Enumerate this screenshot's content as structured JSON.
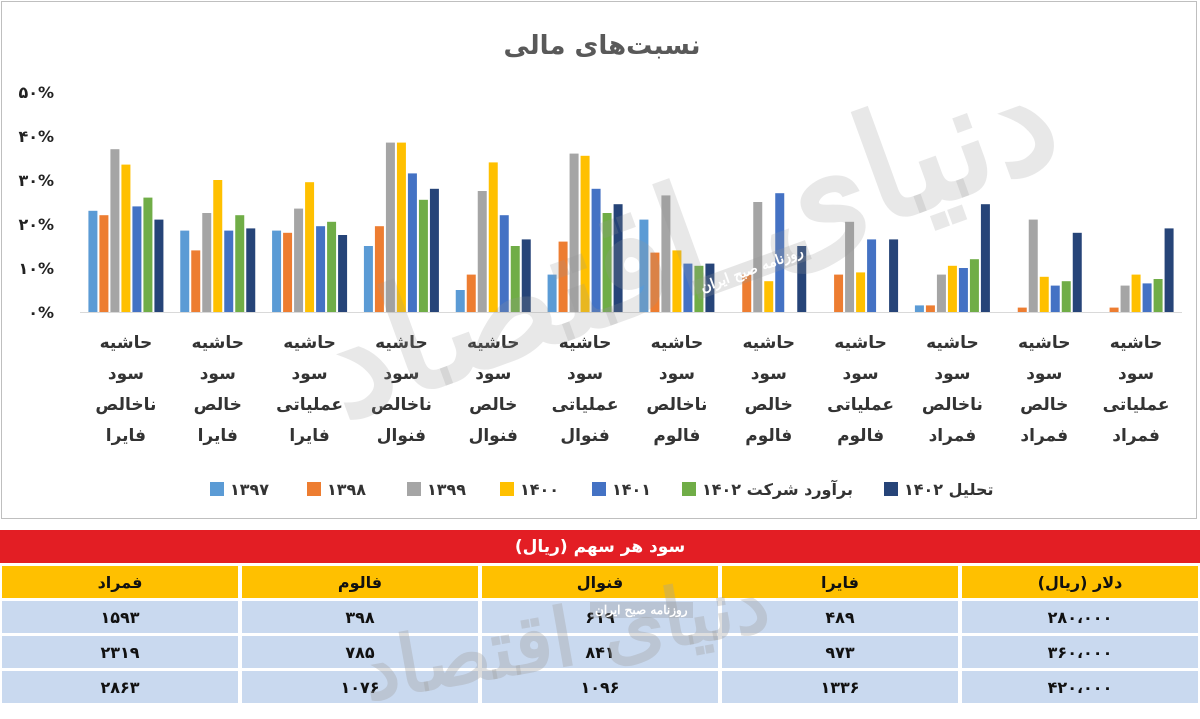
{
  "chart_data": {
    "type": "bar",
    "title": "نسبت‌های مالی",
    "categories": [
      [
        "حاشیه",
        "سود",
        "ناخالص",
        "فایرا"
      ],
      [
        "حاشیه",
        "سود",
        "خالص",
        "فایرا"
      ],
      [
        "حاشیه",
        "سود",
        "عملیاتی",
        "فایرا"
      ],
      [
        "حاشیه",
        "سود",
        "ناخالص",
        "فنوال"
      ],
      [
        "حاشیه",
        "سود",
        "خالص",
        "فنوال"
      ],
      [
        "حاشیه",
        "سود",
        "عملیاتی",
        "فنوال"
      ],
      [
        "حاشیه",
        "سود",
        "ناخالص",
        "فالوم"
      ],
      [
        "حاشیه",
        "سود",
        "خالص",
        "فالوم"
      ],
      [
        "حاشیه",
        "سود",
        "عملیاتی",
        "فالوم"
      ],
      [
        "حاشیه",
        "سود",
        "ناخالص",
        "فمراد"
      ],
      [
        "حاشیه",
        "سود",
        "خالص",
        "فمراد"
      ],
      [
        "حاشیه",
        "سود",
        "عملیاتی",
        "فمراد"
      ]
    ],
    "series": [
      {
        "name": "۱۳۹۷",
        "color": "#5b9bd5",
        "values": [
          23,
          18.5,
          18.5,
          15,
          5,
          8.5,
          21,
          0,
          0,
          1.5,
          0,
          0
        ]
      },
      {
        "name": "۱۳۹۸",
        "color": "#ed7d31",
        "values": [
          22,
          14,
          18,
          19.5,
          8.5,
          16,
          13.5,
          8.5,
          8.5,
          1.5,
          1,
          1
        ]
      },
      {
        "name": "۱۳۹۹",
        "color": "#a5a5a5",
        "values": [
          37,
          22.5,
          23.5,
          38.5,
          27.5,
          36,
          26.5,
          25,
          20.5,
          8.5,
          21,
          6
        ]
      },
      {
        "name": "۱۴۰۰",
        "color": "#ffc000",
        "values": [
          33.5,
          30,
          29.5,
          38.5,
          34,
          35.5,
          14,
          7,
          9,
          10.5,
          8,
          8.5
        ]
      },
      {
        "name": "۱۴۰۱",
        "color": "#4472c4",
        "values": [
          24,
          18.5,
          19.5,
          31.5,
          22,
          28,
          11,
          27,
          16.5,
          10,
          6,
          6.5
        ]
      },
      {
        "name": "برآورد شرکت ۱۴۰۲",
        "color": "#70ad47",
        "values": [
          26,
          22,
          20.5,
          25.5,
          15,
          22.5,
          10.5,
          0,
          0,
          12,
          7,
          7.5
        ]
      },
      {
        "name": "تحلیل ۱۴۰۲",
        "color": "#264478",
        "values": [
          21,
          19,
          17.5,
          28,
          16.5,
          24.5,
          11,
          15,
          16.5,
          24.5,
          18,
          19
        ]
      }
    ],
    "y_ticks": [
      "۰%",
      "۱۰%",
      "۲۰%",
      "۳۰%",
      "۴۰%",
      "۵۰%"
    ],
    "ylim": [
      0,
      50
    ],
    "grid": false,
    "legend_position": "bottom"
  },
  "table": {
    "title": "سود هر سهم (ریال)",
    "headers": [
      "دلار (ریال)",
      "فایرا",
      "فنوال",
      "فالوم",
      "فمراد"
    ],
    "rows": [
      [
        "۲۸۰،۰۰۰",
        "۴۸۹",
        "۶۱۹",
        "۳۹۸",
        "۱۵۹۳"
      ],
      [
        "۳۶۰،۰۰۰",
        "۹۷۳",
        "۸۴۱",
        "۷۸۵",
        "۲۳۱۹"
      ],
      [
        "۴۲۰،۰۰۰",
        "۱۳۳۶",
        "۱۰۹۶",
        "۱۰۷۶",
        "۲۸۶۳"
      ]
    ]
  },
  "watermark": {
    "brand": "دنیای اقتصاد",
    "tagline": "روزنامه صبح ایران"
  }
}
